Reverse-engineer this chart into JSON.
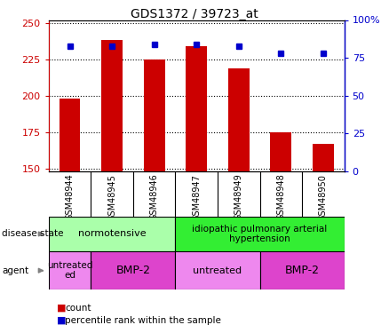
{
  "title": "GDS1372 / 39723_at",
  "samples": [
    "GSM48944",
    "GSM48945",
    "GSM48946",
    "GSM48947",
    "GSM48949",
    "GSM48948",
    "GSM48950"
  ],
  "count_values": [
    198,
    238,
    225,
    234,
    219,
    175,
    167
  ],
  "percentile_values": [
    83,
    83,
    84,
    84,
    83,
    78,
    78
  ],
  "ylim_left": [
    148,
    252
  ],
  "ylim_right": [
    0,
    100
  ],
  "left_ticks": [
    150,
    175,
    200,
    225,
    250
  ],
  "right_ticks": [
    0,
    25,
    50,
    75,
    100
  ],
  "left_tick_labels": [
    "150",
    "175",
    "200",
    "225",
    "250"
  ],
  "right_tick_labels": [
    "0",
    "25",
    "50",
    "75",
    "100%"
  ],
  "bar_color": "#cc0000",
  "dot_color": "#0000cc",
  "bar_width": 0.5,
  "norm_color": "#aaffaa",
  "ipah_color": "#33ee33",
  "untreated_color": "#ee88ee",
  "bmp2_color": "#dd44cc",
  "plot_bg": "#ffffff",
  "xtick_bg": "#cccccc",
  "left_axis_color": "#cc0000",
  "right_axis_color": "#0000cc"
}
